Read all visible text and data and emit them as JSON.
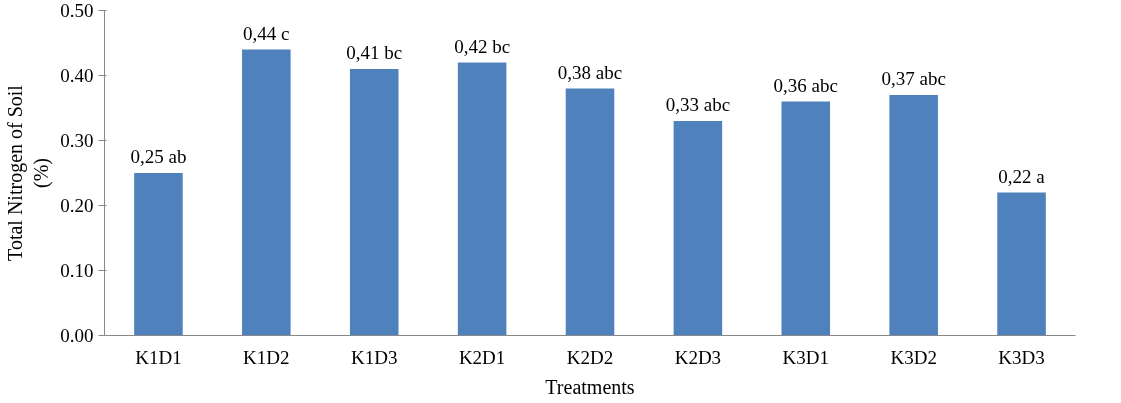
{
  "chart_data": {
    "type": "bar",
    "xlabel": "Treatments",
    "ylabel": "Total Nitrogen of Soil\n(%)",
    "categories": [
      "K1D1",
      "K1D2",
      "K1D3",
      "K2D1",
      "K2D2",
      "K2D3",
      "K3D1",
      "K3D2",
      "K3D3"
    ],
    "values": [
      0.25,
      0.44,
      0.41,
      0.42,
      0.38,
      0.33,
      0.36,
      0.37,
      0.22
    ],
    "value_labels": [
      "0,25 ab",
      "0,44 c",
      "0,41 bc",
      "0,42 bc",
      "0,38 abc",
      "0,33 abc",
      "0,36 abc",
      "0,37 abc",
      "0,22 a"
    ],
    "color": "#4f81bd",
    "ylim": [
      0,
      0.5
    ],
    "yticks": [
      {
        "value": 0,
        "label": "0.00"
      },
      {
        "value": 0.1,
        "label": "0.10"
      },
      {
        "value": 0.2,
        "label": "0.20"
      },
      {
        "value": 0.3,
        "label": "0.30"
      },
      {
        "value": 0.4,
        "label": "0.40"
      },
      {
        "value": 0.5,
        "label": "0.50"
      }
    ],
    "grid": false
  }
}
